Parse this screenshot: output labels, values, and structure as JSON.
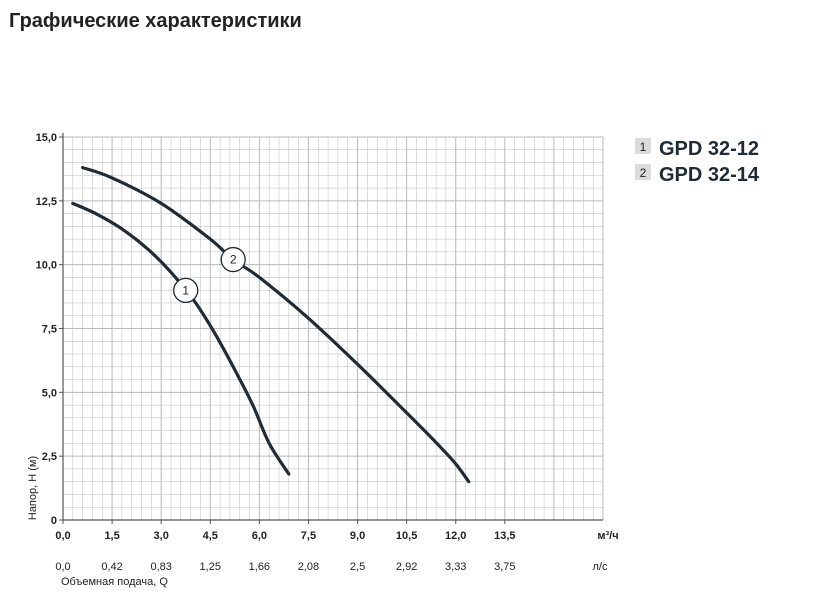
{
  "page": {
    "title": "Графические характеристики"
  },
  "chart_data": {
    "type": "line",
    "xlabel": "Объемная подача, Q",
    "ylabel": "Напор, H (м)",
    "x_unit_top": "м³/ч",
    "x_unit_bottom": "л/с",
    "xlim": [
      0,
      16.5
    ],
    "ylim": [
      0,
      15
    ],
    "x_ticks_m3h": [
      "0,0",
      "1,5",
      "3,0",
      "4,5",
      "6,0",
      "7,5",
      "9,0",
      "10,5",
      "12,0",
      "13,5"
    ],
    "x_ticks_m3h_values": [
      0,
      1.5,
      3,
      4.5,
      6,
      7.5,
      9,
      10.5,
      12,
      13.5
    ],
    "x_ticks_ls": [
      "0,0",
      "0,42",
      "0,83",
      "1,25",
      "1,66",
      "2,08",
      "2,5",
      "2,92",
      "3,33",
      "3,75"
    ],
    "y_ticks": [
      "0",
      "2,5",
      "5,0",
      "7,5",
      "10,0",
      "12,5",
      "15,0"
    ],
    "y_ticks_values": [
      0,
      2.5,
      5,
      7.5,
      10,
      12.5,
      15
    ],
    "grid": true,
    "legend_position": "top-right",
    "series": [
      {
        "name": "GPD 32-12",
        "marker": "1",
        "marker_at": 3.75,
        "x": [
          0.3,
          1.0,
          1.8,
          2.6,
          3.3,
          4.0,
          4.6,
          5.2,
          5.8,
          6.3,
          6.9
        ],
        "y": [
          12.4,
          12.0,
          11.4,
          10.6,
          9.7,
          8.6,
          7.4,
          6.0,
          4.5,
          3.0,
          1.8
        ]
      },
      {
        "name": "GPD 32-14",
        "marker": "2",
        "marker_at": 5.2,
        "x": [
          0.6,
          1.5,
          3.0,
          4.5,
          5.2,
          6.0,
          7.5,
          9.0,
          10.5,
          11.5,
          12.0,
          12.4
        ],
        "y": [
          13.8,
          13.4,
          12.4,
          11.0,
          10.2,
          9.5,
          7.9,
          6.1,
          4.2,
          2.9,
          2.2,
          1.5
        ]
      }
    ],
    "colors": {
      "line": "#1f2b35",
      "grid": "#b9b9b9",
      "legend_box": "#dcdcdc"
    }
  }
}
